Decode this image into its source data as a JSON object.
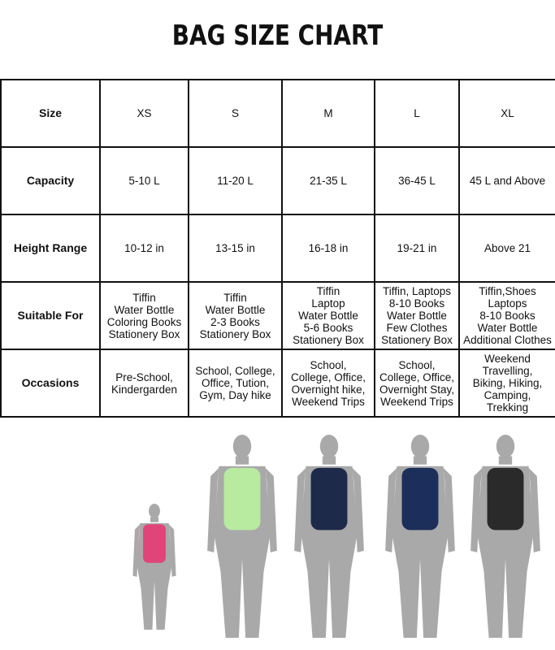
{
  "title": "BAG SIZE CHART",
  "rows": [
    {
      "label": "Size",
      "cells": [
        "XS",
        "S",
        "M",
        "L",
        "XL"
      ]
    },
    {
      "label": "Capacity",
      "cells": [
        "5-10 L",
        "11-20 L",
        "21-35 L",
        "36-45 L",
        "45 L and Above"
      ]
    },
    {
      "label": "Height Range",
      "cells": [
        "10-12 in",
        "13-15 in",
        "16-18 in",
        "19-21 in",
        "Above 21"
      ]
    },
    {
      "label": "Suitable For",
      "cells": [
        "Tiffin\nWater Bottle\nColoring Books\nStationery Box",
        "Tiffin\nWater Bottle\n2-3 Books\nStationery Box",
        "Tiffin\nLaptop\nWater Bottle\n5-6 Books\nStationery Box",
        "Tiffin, Laptops\n8-10 Books\nWater Bottle\nFew Clothes\nStationery Box",
        "Tiffin,Shoes\nLaptops\n8-10 Books\nWater Bottle\nAdditional Clothes"
      ]
    },
    {
      "label": "Occasions",
      "cells": [
        "Pre-School,\nKindergarden",
        "School, College,\nOffice, Tution,\nGym, Day hike",
        "School,\nCollege, Office,\nOvernight hike,\nWeekend Trips",
        "School,\nCollege, Office,\nOvernight Stay,\nWeekend Trips",
        "Weekend\nTravelling,\nBiking, Hiking,\nCamping,\nTrekking"
      ]
    }
  ],
  "figures": [
    {
      "size": "XS",
      "bag_color": "#e0457a"
    },
    {
      "size": "S",
      "bag_color": "#b8eaa0"
    },
    {
      "size": "M",
      "bag_color": "#1e2a4a"
    },
    {
      "size": "L",
      "bag_color": "#1c2e5a"
    },
    {
      "size": "XL",
      "bag_color": "#2a2a2a"
    }
  ],
  "silhouette_color": "#a9a9a9"
}
